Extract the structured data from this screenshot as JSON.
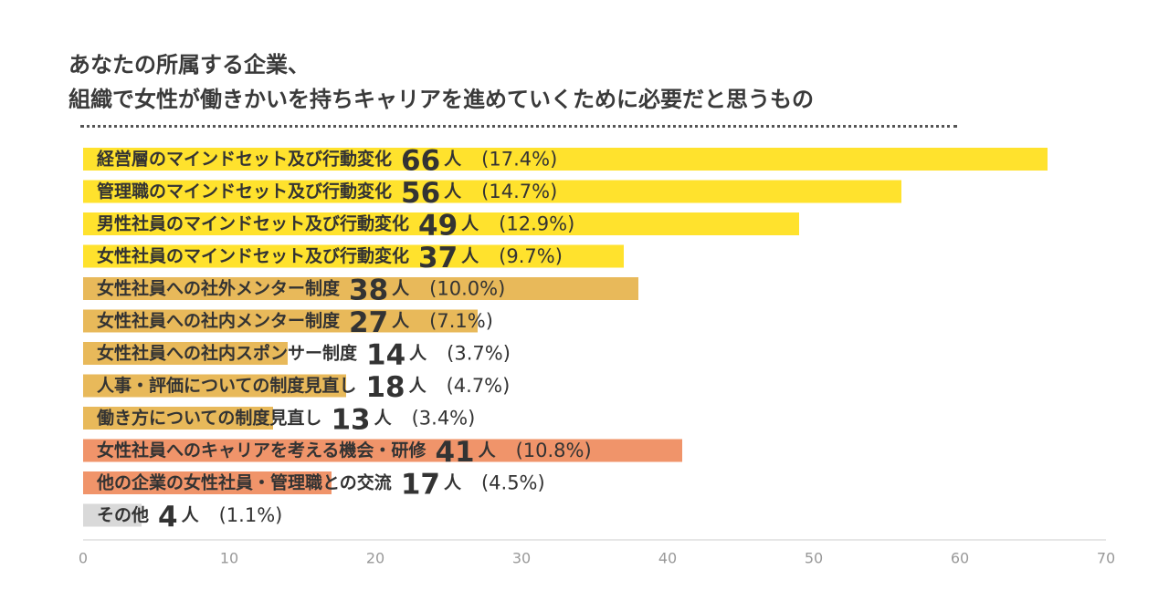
{
  "title_lines": [
    "あなたの所属する企業、",
    "組織で女性が働きかいを持ちキャリアを進めていくために必要だと思うもの"
  ],
  "colors": {
    "yellow": "#FFE22D",
    "tan": "#E8B95A",
    "orange": "#F0946A",
    "gray": "#D9D9D9",
    "axis": "#999999"
  },
  "chart_data": {
    "type": "bar",
    "orientation": "horizontal",
    "title": "あなたの所属する企業、組織で女性が働きかいを持ちキャリアを進めていくために必要だと思うもの",
    "xlim": [
      0,
      70
    ],
    "xticks": [
      0,
      10,
      20,
      30,
      40,
      50,
      60,
      70
    ],
    "xlabel": "",
    "ylabel": "",
    "count_unit": "人",
    "categories": [
      "経営層のマインドセット及び行動変化",
      "管理職のマインドセット及び行動変化",
      "男性社員のマインドセット及び行動変化",
      "女性社員のマインドセット及び行動変化",
      "女性社員への社外メンター制度",
      "女性社員への社内メンター制度",
      "女性社員への社内スポンサー制度",
      "人事・評価についての制度見直し",
      "働き方についての制度見直し",
      "女性社員へのキャリアを考える機会・研修",
      "他の企業の女性社員・管理職との交流",
      "その他"
    ],
    "values": [
      66,
      56,
      49,
      37,
      38,
      27,
      14,
      18,
      13,
      41,
      17,
      4
    ],
    "percent_labels": [
      "(17.4%)",
      "(14.7%)",
      "(12.9%)",
      "(9.7%)",
      "(10.0%)",
      "(7.1%)",
      "(3.7%)",
      "(4.7%)",
      "(3.4%)",
      "(10.8%)",
      "(4.5%)",
      "(1.1%)"
    ],
    "groups": [
      "yellow",
      "yellow",
      "yellow",
      "yellow",
      "tan",
      "tan",
      "tan",
      "tan",
      "tan",
      "orange",
      "orange",
      "gray"
    ]
  }
}
